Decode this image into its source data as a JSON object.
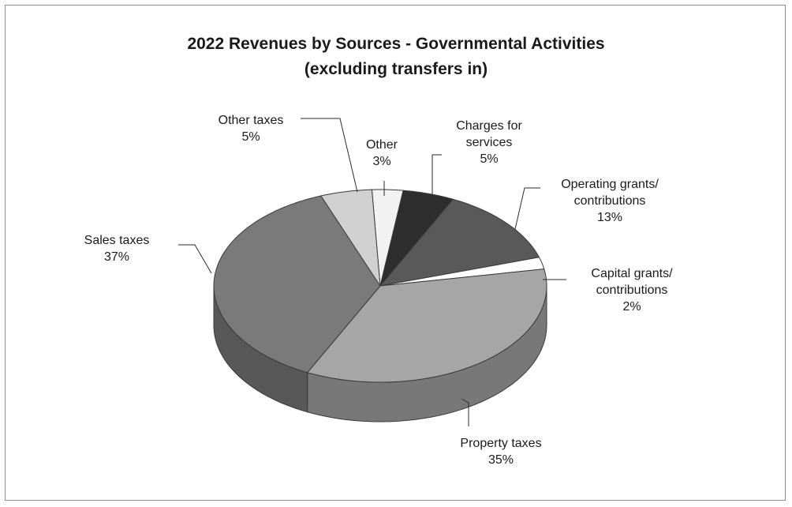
{
  "chart_data": {
    "type": "pie",
    "style": "3d",
    "title": "2022 Revenues by Sources - Governmental Activities",
    "subtitle": "(excluding transfers in)",
    "legend": "none",
    "slices": [
      {
        "label": "Other",
        "percent_label": "3%",
        "value": 3,
        "color": "#f2f2f2"
      },
      {
        "label": "Charges for services",
        "percent_label": "5%",
        "value": 5,
        "color": "#2e2e2e"
      },
      {
        "label": "Operating grants/ contributions",
        "percent_label": "13%",
        "value": 13,
        "color": "#595959"
      },
      {
        "label": "Capital grants/ contributions",
        "percent_label": "2%",
        "value": 2,
        "color": "#ffffff"
      },
      {
        "label": "Property taxes",
        "percent_label": "35%",
        "value": 35,
        "color": "#a6a6a6"
      },
      {
        "label": "Sales taxes",
        "percent_label": "37%",
        "value": 37,
        "color": "#7a7a7a"
      },
      {
        "label": "Other taxes",
        "percent_label": "5%",
        "value": 5,
        "color": "#d0d0d0"
      }
    ]
  }
}
